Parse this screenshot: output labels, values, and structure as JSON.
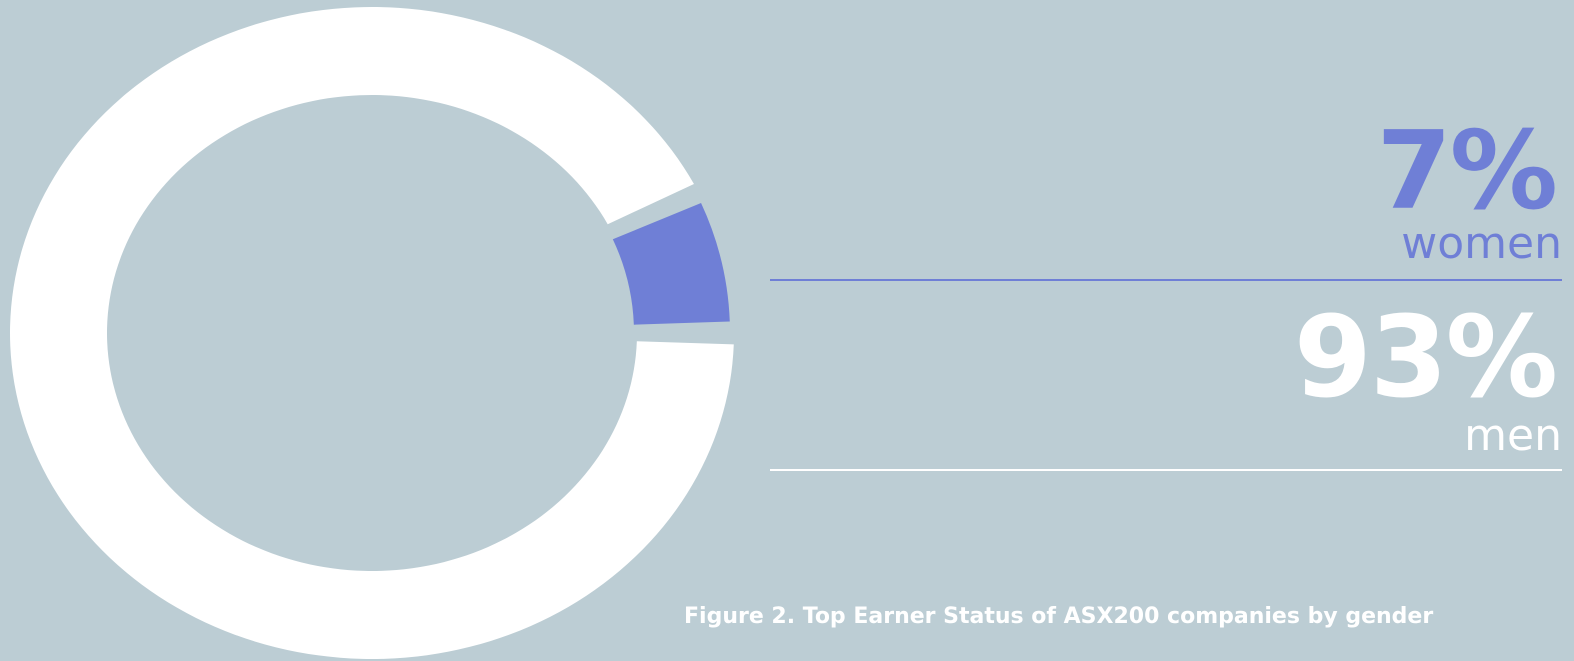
{
  "chart_data": {
    "type": "pie",
    "title": "",
    "categories": [
      "women",
      "men"
    ],
    "values": [
      7,
      93
    ],
    "colors": [
      "#6f7fd6",
      "#ffffff"
    ],
    "background": "#bccdd4",
    "legend_placement": "right",
    "style": "donut",
    "value_labels": [
      "7%",
      "93%"
    ]
  },
  "stats": {
    "women": {
      "value": "7%",
      "label": "women",
      "color": "#6f7fd6"
    },
    "men": {
      "value": "93%",
      "label": "men",
      "color": "#ffffff"
    }
  },
  "caption": "Figure 2. Top Earner Status of ASX200 companies by gender"
}
